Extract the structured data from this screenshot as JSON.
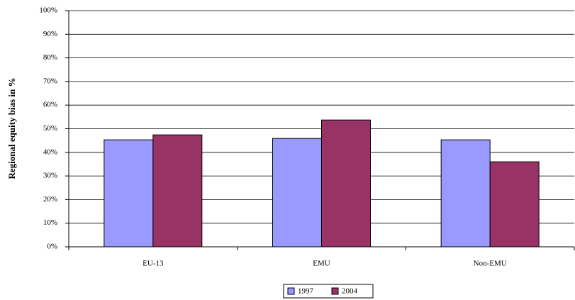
{
  "chart_data": {
    "type": "bar",
    "y_label": "Regional equity bias in %",
    "categories": [
      "EU-13",
      "EMU",
      "Non-EMU"
    ],
    "series": [
      {
        "name": "1997",
        "color": "#9999ff",
        "values": [
          45.3,
          45.9,
          45.3
        ]
      },
      {
        "name": "2004",
        "color": "#993366",
        "values": [
          47.4,
          53.7,
          36.0
        ]
      }
    ],
    "ylim": [
      0,
      100
    ],
    "yticks": [
      {
        "value": 0,
        "label": "0%"
      },
      {
        "value": 10,
        "label": "10%"
      },
      {
        "value": 20,
        "label": "20%"
      },
      {
        "value": 30,
        "label": "30%"
      },
      {
        "value": 40,
        "label": "40%"
      },
      {
        "value": 50,
        "label": "50%"
      },
      {
        "value": 60,
        "label": "60%"
      },
      {
        "value": 70,
        "label": "70%"
      },
      {
        "value": 80,
        "label": "80%"
      },
      {
        "value": 90,
        "label": "90%"
      },
      {
        "value": 100,
        "label": "100%"
      }
    ],
    "grid": true,
    "legend": "bottom"
  }
}
